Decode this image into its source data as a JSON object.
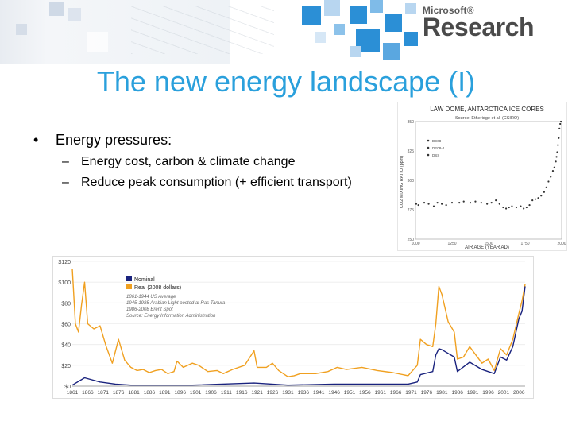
{
  "brand": {
    "company": "Microsoft®",
    "division": "Research"
  },
  "slide": {
    "title": "The new energy landscape (I)",
    "bullet": "Energy pressures:",
    "subitems": [
      "Energy cost, carbon & climate change",
      "Reduce peak consumption (+ efficient transport)"
    ]
  },
  "colors": {
    "title": "#2aa0dc",
    "nominal": "#1a237e",
    "real": "#f0a020",
    "squares": "#2b8fd6"
  },
  "ice_chart": {
    "title": "LAW DOME, ANTARCTICA ICE CORES",
    "source": "Source: Etheridge et al. (CSIRO)",
    "xlabel": "AIR AGE (YEAR AD)",
    "ylabel": "CO2 MIXING RATIO (ppm)",
    "x_ticks": [
      "1000",
      "1250",
      "1500",
      "1750",
      "2000"
    ],
    "y_ticks": [
      "250",
      "275",
      "300",
      "325",
      "350"
    ],
    "legend": [
      "DE08",
      "DE08-2",
      "DSS"
    ]
  },
  "chart_data": {
    "type": "line",
    "y_ticks": [
      "$120",
      "$100",
      "$80",
      "$60",
      "$40",
      "$20",
      "$0"
    ],
    "x_ticks": [
      "1861",
      "1866",
      "1871",
      "1876",
      "1881",
      "1886",
      "1891",
      "1896",
      "1901",
      "1906",
      "1911",
      "1916",
      "1921",
      "1926",
      "1931",
      "1936",
      "1941",
      "1946",
      "1951",
      "1956",
      "1961",
      "1966",
      "1971",
      "1976",
      "1981",
      "1986",
      "1991",
      "1996",
      "2001",
      "2006"
    ],
    "ylim": [
      0,
      120
    ],
    "legend": {
      "nominal": "Nominal",
      "real": "Real (2008 dollars)"
    },
    "notes": [
      "1861-1944 US Average",
      "1945-1985 Arabian Light posted at Ras Tanura",
      "1986-2008 Brent Spot",
      "Source: Energy Information Administration"
    ],
    "series": [
      {
        "name": "Real (2008 dollars)",
        "points": [
          [
            1861,
            113
          ],
          [
            1862,
            60
          ],
          [
            1863,
            52
          ],
          [
            1864,
            78
          ],
          [
            1865,
            100
          ],
          [
            1866,
            60
          ],
          [
            1868,
            55
          ],
          [
            1870,
            58
          ],
          [
            1872,
            38
          ],
          [
            1874,
            22
          ],
          [
            1876,
            45
          ],
          [
            1878,
            25
          ],
          [
            1880,
            18
          ],
          [
            1882,
            15
          ],
          [
            1884,
            16
          ],
          [
            1886,
            13
          ],
          [
            1888,
            15
          ],
          [
            1890,
            16
          ],
          [
            1892,
            12
          ],
          [
            1894,
            14
          ],
          [
            1895,
            24
          ],
          [
            1897,
            18
          ],
          [
            1900,
            22
          ],
          [
            1902,
            20
          ],
          [
            1905,
            14
          ],
          [
            1908,
            15
          ],
          [
            1910,
            12
          ],
          [
            1913,
            16
          ],
          [
            1917,
            20
          ],
          [
            1920,
            34
          ],
          [
            1921,
            18
          ],
          [
            1924,
            18
          ],
          [
            1926,
            22
          ],
          [
            1928,
            15
          ],
          [
            1931,
            9
          ],
          [
            1933,
            10
          ],
          [
            1935,
            12
          ],
          [
            1940,
            12
          ],
          [
            1944,
            14
          ],
          [
            1947,
            18
          ],
          [
            1950,
            16
          ],
          [
            1955,
            18
          ],
          [
            1960,
            15
          ],
          [
            1965,
            13
          ],
          [
            1970,
            10
          ],
          [
            1973,
            20
          ],
          [
            1974,
            45
          ],
          [
            1976,
            40
          ],
          [
            1978,
            38
          ],
          [
            1979,
            60
          ],
          [
            1980,
            96
          ],
          [
            1981,
            88
          ],
          [
            1983,
            62
          ],
          [
            1985,
            52
          ],
          [
            1986,
            26
          ],
          [
            1988,
            28
          ],
          [
            1990,
            38
          ],
          [
            1994,
            22
          ],
          [
            1996,
            26
          ],
          [
            1998,
            15
          ],
          [
            2000,
            36
          ],
          [
            2002,
            30
          ],
          [
            2004,
            45
          ],
          [
            2006,
            70
          ],
          [
            2007,
            82
          ],
          [
            2008,
            98
          ]
        ]
      },
      {
        "name": "Nominal",
        "points": [
          [
            1861,
            1
          ],
          [
            1865,
            8
          ],
          [
            1870,
            4
          ],
          [
            1875,
            2
          ],
          [
            1880,
            1
          ],
          [
            1900,
            1
          ],
          [
            1920,
            3
          ],
          [
            1931,
            1
          ],
          [
            1946,
            2
          ],
          [
            1960,
            2
          ],
          [
            1970,
            2
          ],
          [
            1973,
            4
          ],
          [
            1974,
            11
          ],
          [
            1978,
            14
          ],
          [
            1979,
            30
          ],
          [
            1980,
            36
          ],
          [
            1981,
            35
          ],
          [
            1985,
            28
          ],
          [
            1986,
            14
          ],
          [
            1990,
            23
          ],
          [
            1994,
            16
          ],
          [
            1998,
            12
          ],
          [
            2000,
            28
          ],
          [
            2002,
            25
          ],
          [
            2004,
            38
          ],
          [
            2006,
            65
          ],
          [
            2007,
            72
          ],
          [
            2008,
            96
          ]
        ]
      }
    ]
  }
}
